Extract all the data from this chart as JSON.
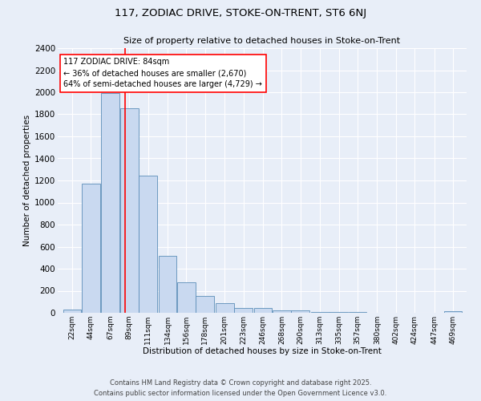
{
  "title1": "117, ZODIAC DRIVE, STOKE-ON-TRENT, ST6 6NJ",
  "title2": "Size of property relative to detached houses in Stoke-on-Trent",
  "xlabel": "Distribution of detached houses by size in Stoke-on-Trent",
  "ylabel": "Number of detached properties",
  "bar_labels": [
    "22sqm",
    "44sqm",
    "67sqm",
    "89sqm",
    "111sqm",
    "134sqm",
    "156sqm",
    "178sqm",
    "201sqm",
    "223sqm",
    "246sqm",
    "268sqm",
    "290sqm",
    "313sqm",
    "335sqm",
    "357sqm",
    "380sqm",
    "402sqm",
    "424sqm",
    "447sqm",
    "469sqm"
  ],
  "bar_values": [
    28,
    1170,
    1990,
    1855,
    1245,
    515,
    275,
    150,
    90,
    45,
    45,
    20,
    20,
    5,
    5,
    5,
    2,
    2,
    2,
    2,
    18
  ],
  "bar_color": "#c9d9f0",
  "bar_edge_color": "#5b8db8",
  "annotation_text": "117 ZODIAC DRIVE: 84sqm\n← 36% of detached houses are smaller (2,670)\n64% of semi-detached houses are larger (4,729) →",
  "vline_x": 84,
  "vline_color": "red",
  "footer1": "Contains HM Land Registry data © Crown copyright and database right 2025.",
  "footer2": "Contains public sector information licensed under the Open Government Licence v3.0.",
  "background_color": "#e8eef8",
  "ylim": [
    0,
    2400
  ],
  "yticks": [
    0,
    200,
    400,
    600,
    800,
    1000,
    1200,
    1400,
    1600,
    1800,
    2000,
    2200,
    2400
  ]
}
